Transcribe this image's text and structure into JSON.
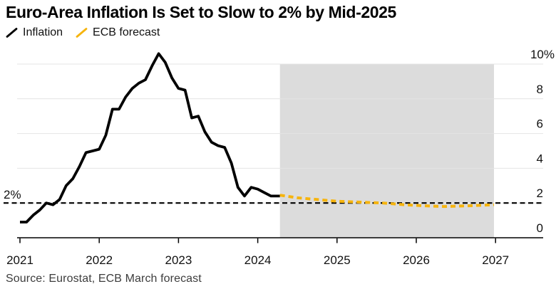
{
  "title": "Euro-Area Inflation Is Set to Slow to 2% by Mid-2025",
  "source": "Source: Eurostat, ECB March forecast",
  "legend": [
    {
      "label": "Inflation",
      "color": "#000000",
      "style": "solid"
    },
    {
      "label": "ECB forecast",
      "color": "#F6B40E",
      "style": "dashed"
    }
  ],
  "colors": {
    "inflation_line": "#000000",
    "forecast_line": "#F6B40E",
    "forecast_region": "#dcdcdc",
    "gridline": "#e4e4e4",
    "axis": "#000000",
    "baseline": "#000000",
    "label_text": "#111111",
    "source_text": "#3d3d3d"
  },
  "chart_data": {
    "type": "line",
    "title": "Euro-Area Inflation Is Set to Slow to 2% by Mid-2025",
    "xlabel": "",
    "ylabel": "",
    "grid": "horizontal",
    "legend_position": "top-left",
    "y_axis_side": "right",
    "xlim": [
      2020.96,
      2027.6
    ],
    "ylim": [
      0,
      10
    ],
    "x_ticks": [
      2021,
      2022,
      2023,
      2024,
      2025,
      2026,
      2027
    ],
    "y_ticks": [
      {
        "value": 10,
        "label": "10%"
      },
      {
        "value": 8,
        "label": "8"
      },
      {
        "value": 6,
        "label": "6"
      },
      {
        "value": 4,
        "label": "4"
      },
      {
        "value": 2,
        "label": "2"
      },
      {
        "value": 0,
        "label": "0"
      }
    ],
    "baseline": {
      "value": 2,
      "label": "2%"
    },
    "forecast_region": {
      "from": 2024.28,
      "to": 2026.98
    },
    "series": [
      {
        "name": "Inflation",
        "color": "#000000",
        "style": "solid",
        "points": [
          [
            2021.0,
            0.9
          ],
          [
            2021.083,
            0.9
          ],
          [
            2021.167,
            1.3
          ],
          [
            2021.25,
            1.6
          ],
          [
            2021.333,
            2.0
          ],
          [
            2021.417,
            1.9
          ],
          [
            2021.5,
            2.2
          ],
          [
            2021.583,
            3.0
          ],
          [
            2021.667,
            3.4
          ],
          [
            2021.75,
            4.1
          ],
          [
            2021.833,
            4.9
          ],
          [
            2021.917,
            5.0
          ],
          [
            2022.0,
            5.1
          ],
          [
            2022.083,
            5.9
          ],
          [
            2022.167,
            7.4
          ],
          [
            2022.25,
            7.4
          ],
          [
            2022.333,
            8.1
          ],
          [
            2022.417,
            8.6
          ],
          [
            2022.5,
            8.9
          ],
          [
            2022.583,
            9.1
          ],
          [
            2022.667,
            9.9
          ],
          [
            2022.75,
            10.6
          ],
          [
            2022.833,
            10.1
          ],
          [
            2022.917,
            9.2
          ],
          [
            2023.0,
            8.6
          ],
          [
            2023.083,
            8.5
          ],
          [
            2023.167,
            6.9
          ],
          [
            2023.25,
            7.0
          ],
          [
            2023.333,
            6.1
          ],
          [
            2023.417,
            5.5
          ],
          [
            2023.5,
            5.3
          ],
          [
            2023.583,
            5.2
          ],
          [
            2023.667,
            4.3
          ],
          [
            2023.75,
            2.9
          ],
          [
            2023.833,
            2.4
          ],
          [
            2023.917,
            2.9
          ],
          [
            2024.0,
            2.8
          ],
          [
            2024.083,
            2.6
          ],
          [
            2024.167,
            2.4
          ],
          [
            2024.28,
            2.4
          ]
        ]
      },
      {
        "name": "ECB forecast",
        "color": "#F6B40E",
        "style": "dashed",
        "points": [
          [
            2024.28,
            2.45
          ],
          [
            2024.5,
            2.3
          ],
          [
            2024.75,
            2.2
          ],
          [
            2025.0,
            2.1
          ],
          [
            2025.3,
            2.05
          ],
          [
            2025.58,
            2.0
          ],
          [
            2025.85,
            1.9
          ],
          [
            2026.1,
            1.84
          ],
          [
            2026.35,
            1.8
          ],
          [
            2026.65,
            1.84
          ],
          [
            2026.98,
            1.9
          ]
        ]
      }
    ]
  }
}
